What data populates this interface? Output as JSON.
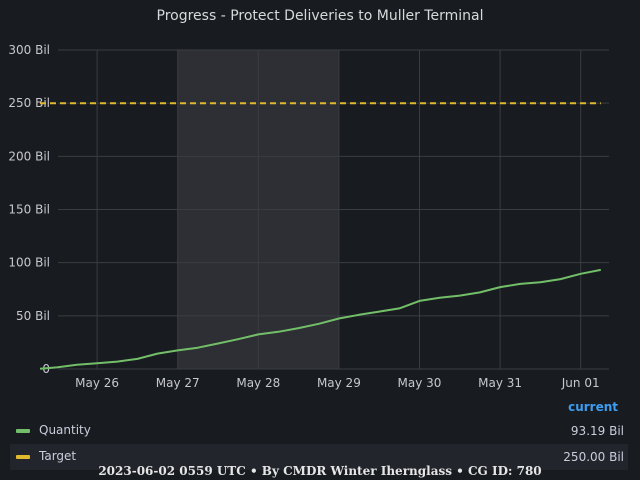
{
  "chart_data": {
    "type": "line",
    "title": "Progress - Protect Deliveries to Muller Terminal",
    "y_ticks": [
      "0",
      "50 Bil",
      "100 Bil",
      "150 Bil",
      "200 Bil",
      "250 Bil",
      "300 Bil"
    ],
    "ylim": [
      0,
      300
    ],
    "x_ticks": [
      "May 26",
      "May 27",
      "May 28",
      "May 29",
      "May 30",
      "May 31",
      "Jun 01"
    ],
    "xlim": [
      "2023-05-25",
      "2023-06-02"
    ],
    "highlight_range": [
      "2023-05-27",
      "2023-05-29"
    ],
    "grid": true,
    "series": [
      {
        "name": "Quantity",
        "color": "#73bf69",
        "x": [
          "2023-05-25T07:00",
          "2023-05-25T12:00",
          "2023-05-25T18:00",
          "2023-05-26T00:00",
          "2023-05-26T06:00",
          "2023-05-26T12:00",
          "2023-05-26T18:00",
          "2023-05-27T00:00",
          "2023-05-27T06:00",
          "2023-05-27T12:00",
          "2023-05-27T18:00",
          "2023-05-28T00:00",
          "2023-05-28T06:00",
          "2023-05-28T12:00",
          "2023-05-28T18:00",
          "2023-05-29T00:00",
          "2023-05-29T06:00",
          "2023-05-29T12:00",
          "2023-05-29T18:00",
          "2023-05-30T00:00",
          "2023-05-30T06:00",
          "2023-05-30T12:00",
          "2023-05-30T18:00",
          "2023-05-31T00:00",
          "2023-05-31T06:00",
          "2023-05-31T12:00",
          "2023-05-31T18:00",
          "2023-06-01T00:00",
          "2023-06-01T06:00"
        ],
        "values": [
          0.2,
          1.5,
          4,
          5.5,
          7,
          9.5,
          14.5,
          17.5,
          20,
          24,
          28,
          32.5,
          35,
          38.5,
          42.5,
          47.5,
          51,
          54,
          57,
          64,
          67,
          69,
          72,
          77,
          80,
          81.5,
          84.5,
          89.5,
          93.19
        ]
      },
      {
        "name": "Target",
        "color": "#fade2a",
        "dashed": true,
        "x": [
          "2023-05-25T07:00",
          "2023-06-01T06:00"
        ],
        "values": [
          250,
          250
        ]
      }
    ]
  },
  "legend": {
    "header": "current",
    "items": [
      {
        "name": "Quantity",
        "current": "93.19 Bil",
        "color": "#73bf69"
      },
      {
        "name": "Target",
        "current": "250.00 Bil",
        "color": "#fade2a"
      }
    ]
  },
  "footer": "2023-06-02 0559 UTC • By CMDR Winter Iherngl­ass • CG ID: 780"
}
